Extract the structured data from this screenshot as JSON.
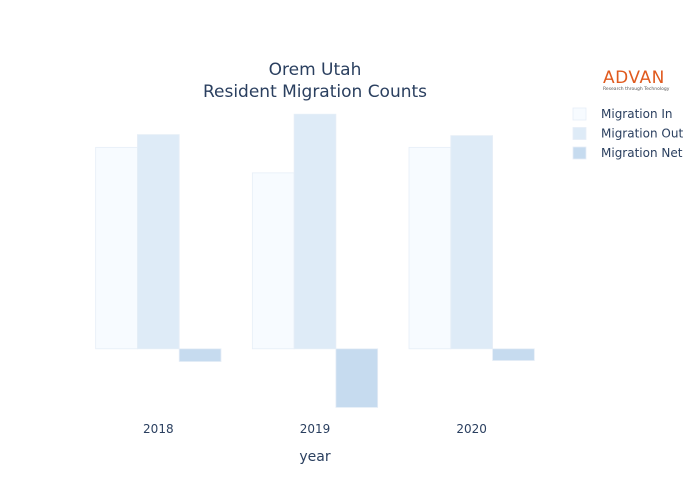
{
  "logo": {
    "brand": "ADVAN",
    "tagline": "Research through Technology",
    "color": "#e05a1e",
    "tagline_color": "#555555"
  },
  "colors": {
    "text": "#2a3f5f",
    "series": [
      "#f7fbff",
      "#deebf7",
      "#c6dbef"
    ],
    "bar_outline": "#e6eef7"
  },
  "chart_data": {
    "type": "bar",
    "title": "Orem Utah",
    "subtitle": "Resident Migration Counts",
    "xlabel": "year",
    "ylabel": "",
    "categories": [
      "2018",
      "2019",
      "2020"
    ],
    "series": [
      {
        "name": "Migration In",
        "values": [
          3950,
          3450,
          3950
        ]
      },
      {
        "name": "Migration Out",
        "values": [
          4200,
          4600,
          4180
        ]
      },
      {
        "name": "Migration Net",
        "values": [
          -250,
          -1150,
          -230
        ]
      }
    ],
    "ylim": [
      -1200,
      4800
    ],
    "grid": false,
    "y_tick_labels_shown": false,
    "legend_position": "top-right"
  }
}
